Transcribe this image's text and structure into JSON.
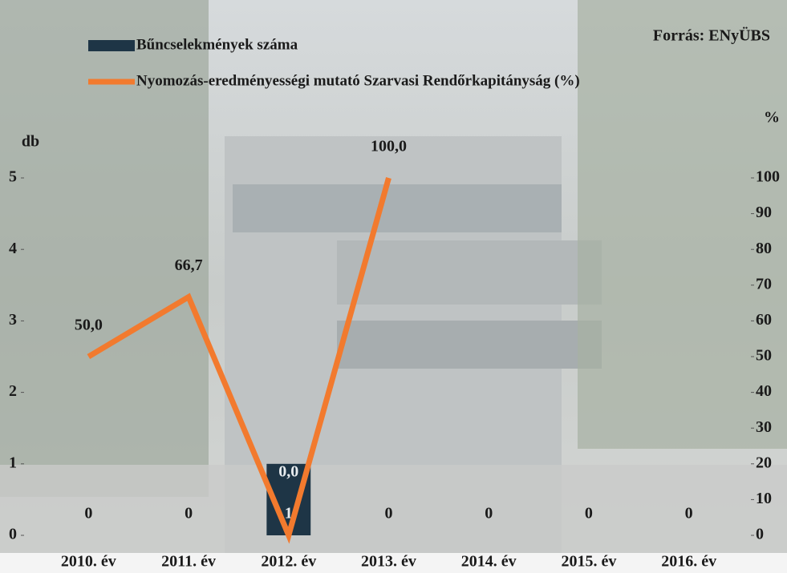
{
  "chart_data": {
    "type": "bar",
    "annotation": "Forrás: ENyÜBS",
    "ylabel": "db",
    "y2label": "%",
    "categories": [
      "2010. év",
      "2011. év",
      "2012. év",
      "2013. év",
      "2014. év",
      "2015. év",
      "2016. év"
    ],
    "series": [
      {
        "name": "Bűncselekmények száma",
        "type": "bar",
        "color": "#1e3546",
        "values": [
          0,
          0,
          1,
          0,
          0,
          0,
          0
        ]
      },
      {
        "name": "Nyomozás-eredményességi mutató Szarvasi Rendőrkapitányság (%)",
        "type": "line",
        "axis": "y2",
        "color": "#f27a2e",
        "values": [
          50.0,
          66.7,
          0.0,
          100.0,
          null,
          null,
          null
        ],
        "value_labels": [
          "50,0",
          "66,7",
          "0,0",
          "100,0",
          null,
          null,
          null
        ]
      }
    ],
    "ylim": [
      0,
      5
    ],
    "yticks": [
      0,
      1,
      2,
      3,
      4,
      5
    ],
    "y2lim": [
      0,
      100
    ],
    "y2ticks": [
      0,
      10,
      20,
      30,
      40,
      50,
      60,
      70,
      80,
      90,
      100
    ],
    "legend": "top-left",
    "grid": false
  }
}
